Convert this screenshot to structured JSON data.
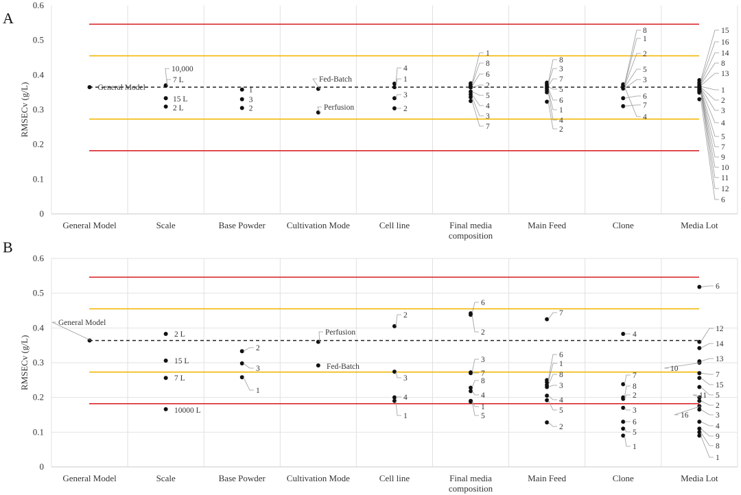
{
  "chart_data": [
    {
      "panel": "A",
      "type": "scatter",
      "ylabel": "RMSECv (g/L)",
      "ylim": [
        0,
        0.6
      ],
      "yticks": [
        "0",
        "0.1",
        "0.2",
        "0.3",
        "0.4",
        "0.5",
        "0.6"
      ],
      "categories": [
        "General Model",
        "Scale",
        "Base Powder",
        "Cultivation Mode",
        "Cell line",
        "Final media|composition",
        "Main Feed",
        "Clone",
        "Media Lot"
      ],
      "grid": "vertical",
      "reference_lines": {
        "dashed": 0.365,
        "yellow": [
          0.455,
          0.273
        ],
        "red": [
          0.546,
          0.182
        ]
      },
      "colors": {
        "red": "#d9262a",
        "yellow": "#f2b705",
        "points": "#111111"
      },
      "series": [
        {
          "category": "General Model",
          "points": [
            {
              "label": "General Model",
              "y": 0.365
            }
          ]
        },
        {
          "category": "Scale",
          "points": [
            {
              "label": "10,000",
              "y": 0.37
            },
            {
              "label": "7 L",
              "y": 0.369
            },
            {
              "label": "15 L",
              "y": 0.333
            },
            {
              "label": "2 L",
              "y": 0.309
            }
          ]
        },
        {
          "category": "Base Powder",
          "points": [
            {
              "label": "1",
              "y": 0.358
            },
            {
              "label": "3",
              "y": 0.33
            },
            {
              "label": "2",
              "y": 0.305
            }
          ]
        },
        {
          "category": "Cultivation Mode",
          "points": [
            {
              "label": "Fed-Batch",
              "y": 0.36
            },
            {
              "label": "Perfusion",
              "y": 0.292
            }
          ]
        },
        {
          "category": "Cell line",
          "points": [
            {
              "label": "4",
              "y": 0.375
            },
            {
              "label": "1",
              "y": 0.365
            },
            {
              "label": "3",
              "y": 0.333
            },
            {
              "label": "2",
              "y": 0.304
            }
          ]
        },
        {
          "category": "Final media|composition",
          "points": [
            {
              "label": "1",
              "y": 0.376
            },
            {
              "label": "8",
              "y": 0.372
            },
            {
              "label": "6",
              "y": 0.368
            },
            {
              "label": "2",
              "y": 0.364
            },
            {
              "label": "5",
              "y": 0.352
            },
            {
              "label": "4",
              "y": 0.344
            },
            {
              "label": "3",
              "y": 0.336
            },
            {
              "label": "7",
              "y": 0.325
            }
          ]
        },
        {
          "category": "Main Feed",
          "points": [
            {
              "label": "8",
              "y": 0.378
            },
            {
              "label": "3",
              "y": 0.374
            },
            {
              "label": "7",
              "y": 0.37
            },
            {
              "label": "5",
              "y": 0.366
            },
            {
              "label": "6",
              "y": 0.362
            },
            {
              "label": "1",
              "y": 0.356
            },
            {
              "label": "4",
              "y": 0.35
            },
            {
              "label": "2",
              "y": 0.323
            }
          ]
        },
        {
          "category": "Clone",
          "points": [
            {
              "label": "8",
              "y": 0.373
            },
            {
              "label": "1",
              "y": 0.37
            },
            {
              "label": "2",
              "y": 0.367
            },
            {
              "label": "5",
              "y": 0.364
            },
            {
              "label": "3",
              "y": 0.361
            },
            {
              "label": "6",
              "y": 0.333
            },
            {
              "label": "7",
              "y": 0.31
            },
            {
              "label": "4",
              "y": 0.366
            }
          ]
        },
        {
          "category": "Media Lot",
          "points": [
            {
              "label": "15",
              "y": 0.385
            },
            {
              "label": "16",
              "y": 0.379
            },
            {
              "label": "14",
              "y": 0.375
            },
            {
              "label": "8",
              "y": 0.372
            },
            {
              "label": "13",
              "y": 0.369
            },
            {
              "label": "1",
              "y": 0.367
            },
            {
              "label": "2",
              "y": 0.365
            },
            {
              "label": "3",
              "y": 0.363
            },
            {
              "label": "4",
              "y": 0.361
            },
            {
              "label": "5",
              "y": 0.359
            },
            {
              "label": "7",
              "y": 0.357
            },
            {
              "label": "9",
              "y": 0.355
            },
            {
              "label": "10",
              "y": 0.353
            },
            {
              "label": "11",
              "y": 0.351
            },
            {
              "label": "12",
              "y": 0.349
            },
            {
              "label": "6",
              "y": 0.33
            }
          ]
        }
      ]
    },
    {
      "panel": "B",
      "type": "scatter",
      "ylabel": "RMSECv (g/L)",
      "ylim": [
        0,
        0.6
      ],
      "yticks": [
        "0",
        "0.1",
        "0.2",
        "0.3",
        "0.4",
        "0.5",
        "0.6"
      ],
      "categories": [
        "General Model",
        "Scale",
        "Base Powder",
        "Cultivation Mode",
        "Cell line",
        "Final media|composition",
        "Main Feed",
        "Clone",
        "Media Lot"
      ],
      "grid": "both",
      "reference_lines": {
        "dashed": 0.364,
        "yellow": [
          0.455,
          0.273
        ],
        "red": [
          0.546,
          0.182
        ]
      },
      "colors": {
        "red": "#d9262a",
        "yellow": "#f2b705",
        "points": "#111111"
      },
      "series": [
        {
          "category": "General Model",
          "points": [
            {
              "label": "General Model",
              "y": 0.364
            }
          ]
        },
        {
          "category": "Scale",
          "points": [
            {
              "label": "2 L",
              "y": 0.383
            },
            {
              "label": "15 L",
              "y": 0.306
            },
            {
              "label": "7 L",
              "y": 0.256
            },
            {
              "label": "10000 L",
              "y": 0.166
            }
          ]
        },
        {
          "category": "Base Powder",
          "points": [
            {
              "label": "2",
              "y": 0.333
            },
            {
              "label": "3",
              "y": 0.298
            },
            {
              "label": "1",
              "y": 0.258
            }
          ]
        },
        {
          "category": "Cultivation Mode",
          "points": [
            {
              "label": "Perfusion",
              "y": 0.36
            },
            {
              "label": "Fed-Batch",
              "y": 0.292
            }
          ]
        },
        {
          "category": "Cell line",
          "points": [
            {
              "label": "2",
              "y": 0.405
            },
            {
              "label": "3",
              "y": 0.274
            },
            {
              "label": "4",
              "y": 0.2
            },
            {
              "label": "1",
              "y": 0.19
            }
          ]
        },
        {
          "category": "Final media|composition",
          "points": [
            {
              "label": "6",
              "y": 0.442
            },
            {
              "label": "2",
              "y": 0.438
            },
            {
              "label": "3",
              "y": 0.272
            },
            {
              "label": "7",
              "y": 0.27
            },
            {
              "label": "8",
              "y": 0.228
            },
            {
              "label": "4",
              "y": 0.218
            },
            {
              "label": "1",
              "y": 0.19
            },
            {
              "label": "5",
              "y": 0.188
            }
          ]
        },
        {
          "category": "Main Feed",
          "points": [
            {
              "label": "7",
              "y": 0.425
            },
            {
              "label": "6",
              "y": 0.25
            },
            {
              "label": "1",
              "y": 0.244
            },
            {
              "label": "8",
              "y": 0.236
            },
            {
              "label": "3",
              "y": 0.23
            },
            {
              "label": "4",
              "y": 0.205
            },
            {
              "label": "5",
              "y": 0.192
            },
            {
              "label": "2",
              "y": 0.128
            }
          ]
        },
        {
          "category": "Clone",
          "points": [
            {
              "label": "4",
              "y": 0.383
            },
            {
              "label": "7",
              "y": 0.238
            },
            {
              "label": "8",
              "y": 0.2
            },
            {
              "label": "2",
              "y": 0.196
            },
            {
              "label": "3",
              "y": 0.17
            },
            {
              "label": "6",
              "y": 0.13
            },
            {
              "label": "5",
              "y": 0.11
            },
            {
              "label": "1",
              "y": 0.09
            }
          ]
        },
        {
          "category": "Media Lot",
          "points": [
            {
              "label": "6",
              "y": 0.518
            },
            {
              "label": "12",
              "y": 0.36
            },
            {
              "label": "14",
              "y": 0.342
            },
            {
              "label": "13",
              "y": 0.304
            },
            {
              "label": "10",
              "y": 0.3
            },
            {
              "label": "7",
              "y": 0.27
            },
            {
              "label": "15",
              "y": 0.256
            },
            {
              "label": "5",
              "y": 0.23
            },
            {
              "label": "11",
              "y": 0.2
            },
            {
              "label": "2",
              "y": 0.19
            },
            {
              "label": "16",
              "y": 0.175
            },
            {
              "label": "3",
              "y": 0.165
            },
            {
              "label": "4",
              "y": 0.13
            },
            {
              "label": "9",
              "y": 0.11
            },
            {
              "label": "8",
              "y": 0.1
            },
            {
              "label": "1",
              "y": 0.09
            }
          ]
        }
      ]
    }
  ]
}
